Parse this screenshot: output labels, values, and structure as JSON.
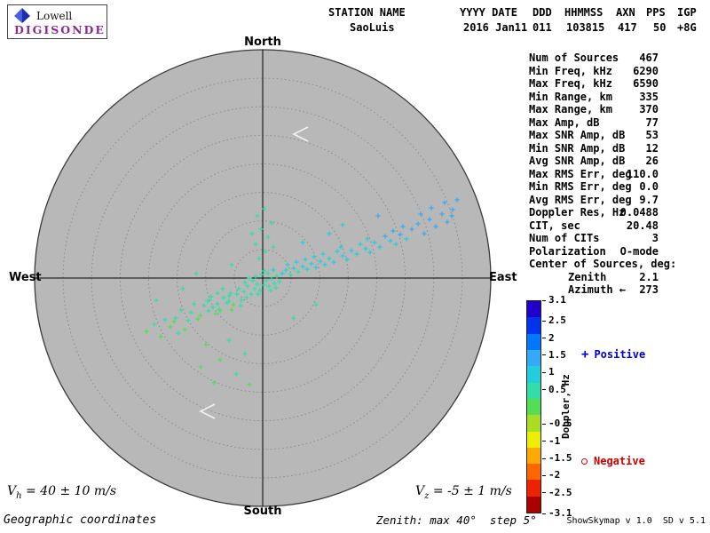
{
  "logo": {
    "name": "Lowell",
    "brand": "DIGISONDE"
  },
  "header": {
    "columns": [
      {
        "label": "STATION NAME",
        "value": "SaoLuis"
      },
      {
        "label": "YYYY DATE",
        "value": "2016 Jan11"
      },
      {
        "label": "DDD",
        "value": "011"
      },
      {
        "label": "HHMMSS",
        "value": "103815"
      },
      {
        "label": "AXN",
        "value": "417"
      },
      {
        "label": "PPS",
        "value": "50"
      },
      {
        "label": "IGP",
        "value": "+8G"
      }
    ]
  },
  "compass": {
    "north": "North",
    "south": "South",
    "east": "East",
    "west": "West"
  },
  "stats": {
    "rows": [
      {
        "label": "Num of Sources",
        "value": "467"
      },
      {
        "label": "Min Freq, kHz",
        "value": "6290"
      },
      {
        "label": "Max Freq, kHz",
        "value": "6590"
      },
      {
        "label": "Min Range, km",
        "value": "335"
      },
      {
        "label": "Max Range, km",
        "value": "370"
      },
      {
        "label": "Max Amp, dB",
        "value": "77"
      },
      {
        "label": "Max SNR Amp, dB",
        "value": "53"
      },
      {
        "label": "Min SNR Amp, dB",
        "value": "12"
      },
      {
        "label": "Avg SNR Amp, dB",
        "value": "26"
      },
      {
        "label": "Max RMS Err, deg",
        "value": "110.0"
      },
      {
        "label": "Min RMS Err, deg",
        "value": "0.0"
      },
      {
        "label": "Avg RMS Err, deg",
        "value": "9.7"
      },
      {
        "label": "Doppler Res, Hz",
        "value": "0.0488"
      },
      {
        "label": "CIT, sec",
        "value": "20.48"
      },
      {
        "label": "Num of CITs",
        "value": "3"
      },
      {
        "label": "Polarization",
        "value": "O-mode"
      },
      {
        "label": "Center of Sources, deg:",
        "value": ""
      },
      {
        "label": "Zenith",
        "value": "2.1",
        "indent": true
      },
      {
        "label": "Azimuth",
        "value": "273",
        "indent": true,
        "icon": "←"
      }
    ]
  },
  "colorbar": {
    "title": "Doppler, Hz",
    "min": -3.1,
    "max": 3.1,
    "ticks": [
      {
        "v": 3.1,
        "label": "3.1"
      },
      {
        "v": 2.5,
        "label": "2.5"
      },
      {
        "v": 2.0,
        "label": "2"
      },
      {
        "v": 1.5,
        "label": "1.5"
      },
      {
        "v": 1.0,
        "label": "1"
      },
      {
        "v": 0.5,
        "label": "0.5"
      },
      {
        "v": -0.5,
        "label": "-0.5"
      },
      {
        "v": -1.0,
        "label": "-1"
      },
      {
        "v": -1.5,
        "label": "-1.5"
      },
      {
        "v": -2.0,
        "label": "-2"
      },
      {
        "v": -2.5,
        "label": "-2.5"
      },
      {
        "v": -3.1,
        "label": "-3.1"
      }
    ],
    "stops": [
      {
        "v": 3.1,
        "color": "#2200cc"
      },
      {
        "v": 2.5,
        "color": "#0033ee"
      },
      {
        "v": 2.0,
        "color": "#0077ff"
      },
      {
        "v": 1.5,
        "color": "#33aaf5"
      },
      {
        "v": 1.0,
        "color": "#22cddd"
      },
      {
        "v": 0.5,
        "color": "#33ddaa"
      },
      {
        "v": 0.0,
        "color": "#55dd55"
      },
      {
        "v": -0.5,
        "color": "#aadd22"
      },
      {
        "v": -1.0,
        "color": "#eeee00"
      },
      {
        "v": -1.5,
        "color": "#ffaa00"
      },
      {
        "v": -2.0,
        "color": "#ff6600"
      },
      {
        "v": -2.5,
        "color": "#ee2200"
      },
      {
        "v": -3.1,
        "color": "#aa0000"
      }
    ]
  },
  "legend": {
    "positive": {
      "symbol": "+",
      "label": "Positive",
      "color": "#0000cd"
    },
    "negative": {
      "symbol": "o",
      "label": "Negative",
      "color": "#cd0000"
    }
  },
  "footer": {
    "vh_var": "V",
    "vh_sub": "h",
    "vh_rest": " = 40 ± 10 m/s",
    "vz_var": "V",
    "vz_sub": "z",
    "vz_rest": " = -5 ± 1 m/s",
    "coords": "Geographic coordinates",
    "zenith_note": "Zenith: max 40°  step 5°",
    "version": "ShowSkymap v 1.0  SD v 5.1"
  },
  "chart_data": {
    "type": "scatter",
    "projection": "polar-skymap",
    "max_zenith_deg": 40,
    "ring_step_deg": 5,
    "doppler_range_hz": [
      -3.1,
      3.1
    ],
    "colorbar_label": "Doppler, Hz",
    "num_sources": 467,
    "points_format": [
      "dx_px_from_center (east positive)",
      "dy_px_from_center (south positive)",
      "doppler_hz"
    ],
    "plot_radius_px": 257,
    "points": [
      [
        -131,
        60,
        0.2
      ],
      [
        -122,
        52,
        0.3
      ],
      [
        -115,
        66,
        0.2
      ],
      [
        -110,
        47,
        0.3
      ],
      [
        -104,
        55,
        0.2
      ],
      [
        -98,
        45,
        0.3
      ],
      [
        -100,
        49,
        0.2
      ],
      [
        -92,
        36,
        0.4
      ],
      [
        -84,
        48,
        0.3
      ],
      [
        -77,
        29,
        0.4
      ],
      [
        -73,
        46,
        0.2
      ],
      [
        -88,
        58,
        0.2
      ],
      [
        -95,
        62,
        0.3
      ],
      [
        -81,
        39,
        0.3
      ],
      [
        -61,
        37,
        0.3
      ],
      [
        -70,
        42,
        0.2
      ],
      [
        -60,
        25,
        0.5
      ],
      [
        -49,
        35,
        0.3
      ],
      [
        -62,
        26,
        0.4
      ],
      [
        -48,
        37,
        0.2
      ],
      [
        -51,
        17,
        0.5
      ],
      [
        -38,
        26,
        0.4
      ],
      [
        -51,
        29,
        0.3
      ],
      [
        -36,
        17,
        0.5
      ],
      [
        -40,
        28,
        0.3
      ],
      [
        -27,
        12,
        0.5
      ],
      [
        -38,
        20,
        0.4
      ],
      [
        -24,
        25,
        0.3
      ],
      [
        -56,
        33,
        0.3
      ],
      [
        -44,
        22,
        0.4
      ],
      [
        -33,
        30,
        0.2
      ],
      [
        -29,
        18,
        0.4
      ],
      [
        -21,
        15,
        0.5
      ],
      [
        -18,
        22,
        0.3
      ],
      [
        -45,
        12,
        0.5
      ],
      [
        -58,
        21,
        0.4
      ],
      [
        -66,
        31,
        0.3
      ],
      [
        -53,
        40,
        0.2
      ],
      [
        -35,
        36,
        0.2
      ],
      [
        -25,
        31,
        0.3
      ],
      [
        -17,
        9,
        0.6
      ],
      [
        -13,
        18,
        0.4
      ],
      [
        -9,
        12,
        0.5
      ],
      [
        -20,
        5,
        0.6
      ],
      [
        -6,
        7,
        0.5
      ],
      [
        -11,
        3,
        0.6
      ],
      [
        -3,
        14,
        0.4
      ],
      [
        1,
        8,
        0.5
      ],
      [
        -8,
        -2,
        0.6
      ],
      [
        4,
        3,
        0.6
      ],
      [
        -1,
        -4,
        0.7
      ],
      [
        7,
        9,
        0.5
      ],
      [
        -15,
        0,
        0.6
      ],
      [
        2,
        -8,
        0.7
      ],
      [
        10,
        1,
        0.6
      ],
      [
        6,
        -5,
        0.7
      ],
      [
        13,
        6,
        0.5
      ],
      [
        -5,
        18,
        0.3
      ],
      [
        9,
        14,
        0.4
      ],
      [
        16,
        -2,
        0.7
      ],
      [
        12,
        -9,
        0.8
      ],
      [
        19,
        4,
        0.6
      ],
      [
        22,
        -5,
        0.8
      ],
      [
        15,
        11,
        0.5
      ],
      [
        26,
        -9,
        0.8
      ],
      [
        31,
        -4,
        0.7
      ],
      [
        28,
        -15,
        0.9
      ],
      [
        35,
        -11,
        0.8
      ],
      [
        40,
        -7,
        0.7
      ],
      [
        38,
        -18,
        0.9
      ],
      [
        45,
        -13,
        0.8
      ],
      [
        50,
        -10,
        0.8
      ],
      [
        48,
        -21,
        1.0
      ],
      [
        55,
        -16,
        0.9
      ],
      [
        60,
        -12,
        0.8
      ],
      [
        58,
        -24,
        1.0
      ],
      [
        65,
        -19,
        0.9
      ],
      [
        70,
        -15,
        0.9
      ],
      [
        68,
        -27,
        1.0
      ],
      [
        75,
        -22,
        1.0
      ],
      [
        80,
        -18,
        0.9
      ],
      [
        84,
        -30,
        1.1
      ],
      [
        90,
        -25,
        1.0
      ],
      [
        95,
        -21,
        1.0
      ],
      [
        88,
        -35,
        1.1
      ],
      [
        100,
        -31,
        1.1
      ],
      [
        106,
        -27,
        1.0
      ],
      [
        110,
        -38,
        1.2
      ],
      [
        116,
        -33,
        1.1
      ],
      [
        121,
        -29,
        1.1
      ],
      [
        118,
        -44,
        1.2
      ],
      [
        126,
        -40,
        1.2
      ],
      [
        132,
        -35,
        1.1
      ],
      [
        138,
        -47,
        1.3
      ],
      [
        144,
        -42,
        1.2
      ],
      [
        150,
        -38,
        1.2
      ],
      [
        147,
        -53,
        1.3
      ],
      [
        155,
        -49,
        1.3
      ],
      [
        162,
        -44,
        1.2
      ],
      [
        158,
        -58,
        1.4
      ],
      [
        168,
        -55,
        1.3
      ],
      [
        175,
        -61,
        1.4
      ],
      [
        182,
        -50,
        1.3
      ],
      [
        188,
        -66,
        1.4
      ],
      [
        195,
        -58,
        1.4
      ],
      [
        202,
        -72,
        1.5
      ],
      [
        208,
        -63,
        1.4
      ],
      [
        214,
        -77,
        1.5
      ],
      [
        219,
        -88,
        1.5
      ],
      [
        205,
        -85,
        1.5
      ],
      [
        190,
        -79,
        1.4
      ],
      [
        178,
        -72,
        1.3
      ],
      [
        213,
        -70,
        1.4
      ],
      [
        -4,
        -22,
        0.4
      ],
      [
        3,
        -30,
        0.3
      ],
      [
        -8,
        -38,
        0.4
      ],
      [
        6,
        -46,
        0.3
      ],
      [
        -2,
        -55,
        0.3
      ],
      [
        10,
        -62,
        0.4
      ],
      [
        -6,
        -70,
        0.3
      ],
      [
        2,
        -78,
        0.3
      ],
      [
        12,
        -35,
        0.4
      ],
      [
        -12,
        -50,
        0.3
      ],
      [
        -64,
        75,
        0.2
      ],
      [
        -48,
        92,
        0.2
      ],
      [
        -30,
        108,
        0.3
      ],
      [
        -55,
        118,
        0.2
      ],
      [
        -20,
        85,
        0.3
      ],
      [
        -70,
        100,
        0.2
      ],
      [
        -38,
        70,
        0.3
      ],
      [
        -15,
        120,
        0.2
      ],
      [
        -90,
        12,
        0.4
      ],
      [
        -120,
        25,
        0.3
      ],
      [
        60,
        30,
        0.4
      ],
      [
        35,
        45,
        0.3
      ],
      [
        90,
        -60,
        1.2
      ],
      [
        130,
        -70,
        1.3
      ],
      [
        45,
        -40,
        0.8
      ],
      [
        75,
        -50,
        1.0
      ],
      [
        -35,
        -15,
        0.5
      ],
      [
        -75,
        -5,
        0.4
      ]
    ]
  }
}
